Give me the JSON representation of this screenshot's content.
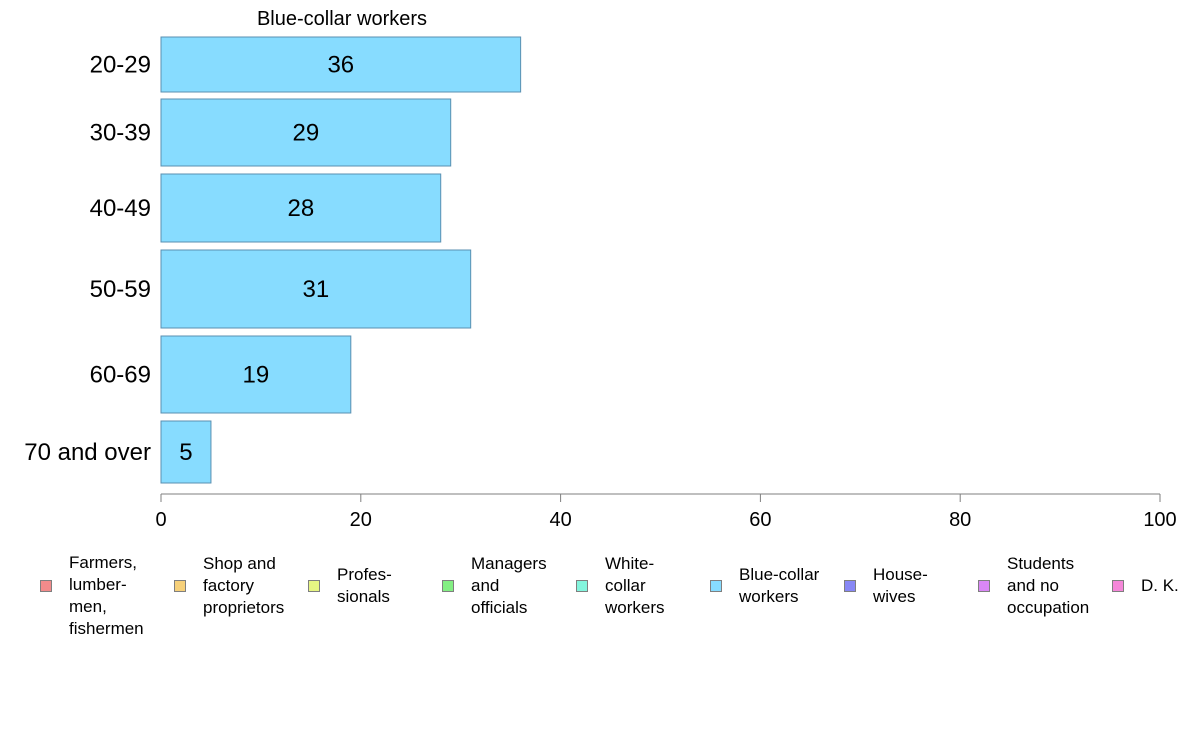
{
  "chart_data": {
    "type": "bar",
    "orientation": "horizontal",
    "title": "Blue-collar workers",
    "categories": [
      "20-29",
      "30-39",
      "40-49",
      "50-59",
      "60-69",
      "70 and over"
    ],
    "values": [
      36,
      29,
      28,
      31,
      19,
      5
    ],
    "value_labels": [
      "36",
      "29",
      "28",
      "31",
      "19",
      "5"
    ],
    "xlim": [
      0,
      100
    ],
    "x_ticks": [
      "0",
      "20",
      "40",
      "60",
      "80",
      "100"
    ],
    "x_tick_values": [
      0,
      20,
      40,
      60,
      80,
      100
    ],
    "xlabel": "",
    "ylabel": "",
    "grid": false,
    "bar_color": "#87dcff",
    "bar_edge_color": "#5a8fb0",
    "legend_position": "bottom",
    "legend": [
      {
        "label": "Farmers,\nlumber-\nmen,\nfishermen",
        "color": "#f28b8b"
      },
      {
        "label": "Shop and\nfactory\nproprietors",
        "color": "#f6d07a"
      },
      {
        "label": "Profes-\nsionals",
        "color": "#e6f583"
      },
      {
        "label": "Managers\nand\nofficials",
        "color": "#83ef83"
      },
      {
        "label": "White-\ncollar\nworkers",
        "color": "#83f5dd"
      },
      {
        "label": "Blue-collar\nworkers",
        "color": "#87dcff"
      },
      {
        "label": "House-\nwives",
        "color": "#8787f5"
      },
      {
        "label": "Students\nand no\noccupation",
        "color": "#d987f5"
      },
      {
        "label": "D. K.",
        "color": "#f587d9"
      }
    ]
  }
}
